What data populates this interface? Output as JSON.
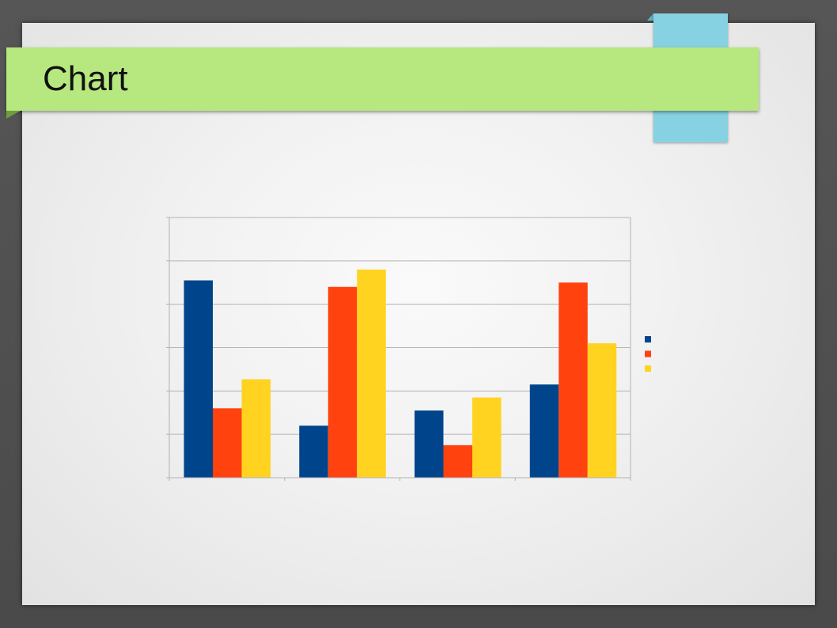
{
  "slide": {
    "title": "Chart"
  },
  "colors": {
    "series1": "#00458b",
    "series2": "#ff420e",
    "series3": "#ffd320",
    "title_bar": "#b7e87f",
    "accent_tab": "#86d2e2",
    "gridline": "#b3b3b3"
  },
  "chart_data": {
    "type": "bar",
    "categories": [
      "",
      "",
      "",
      ""
    ],
    "series": [
      {
        "values": [
          9.1,
          2.4,
          3.1,
          4.3
        ]
      },
      {
        "values": [
          3.2,
          8.8,
          1.5,
          9.0
        ]
      },
      {
        "values": [
          4.54,
          9.6,
          3.7,
          6.2
        ]
      }
    ],
    "ylim": [
      0,
      12
    ],
    "grid": true,
    "legend": "right"
  }
}
